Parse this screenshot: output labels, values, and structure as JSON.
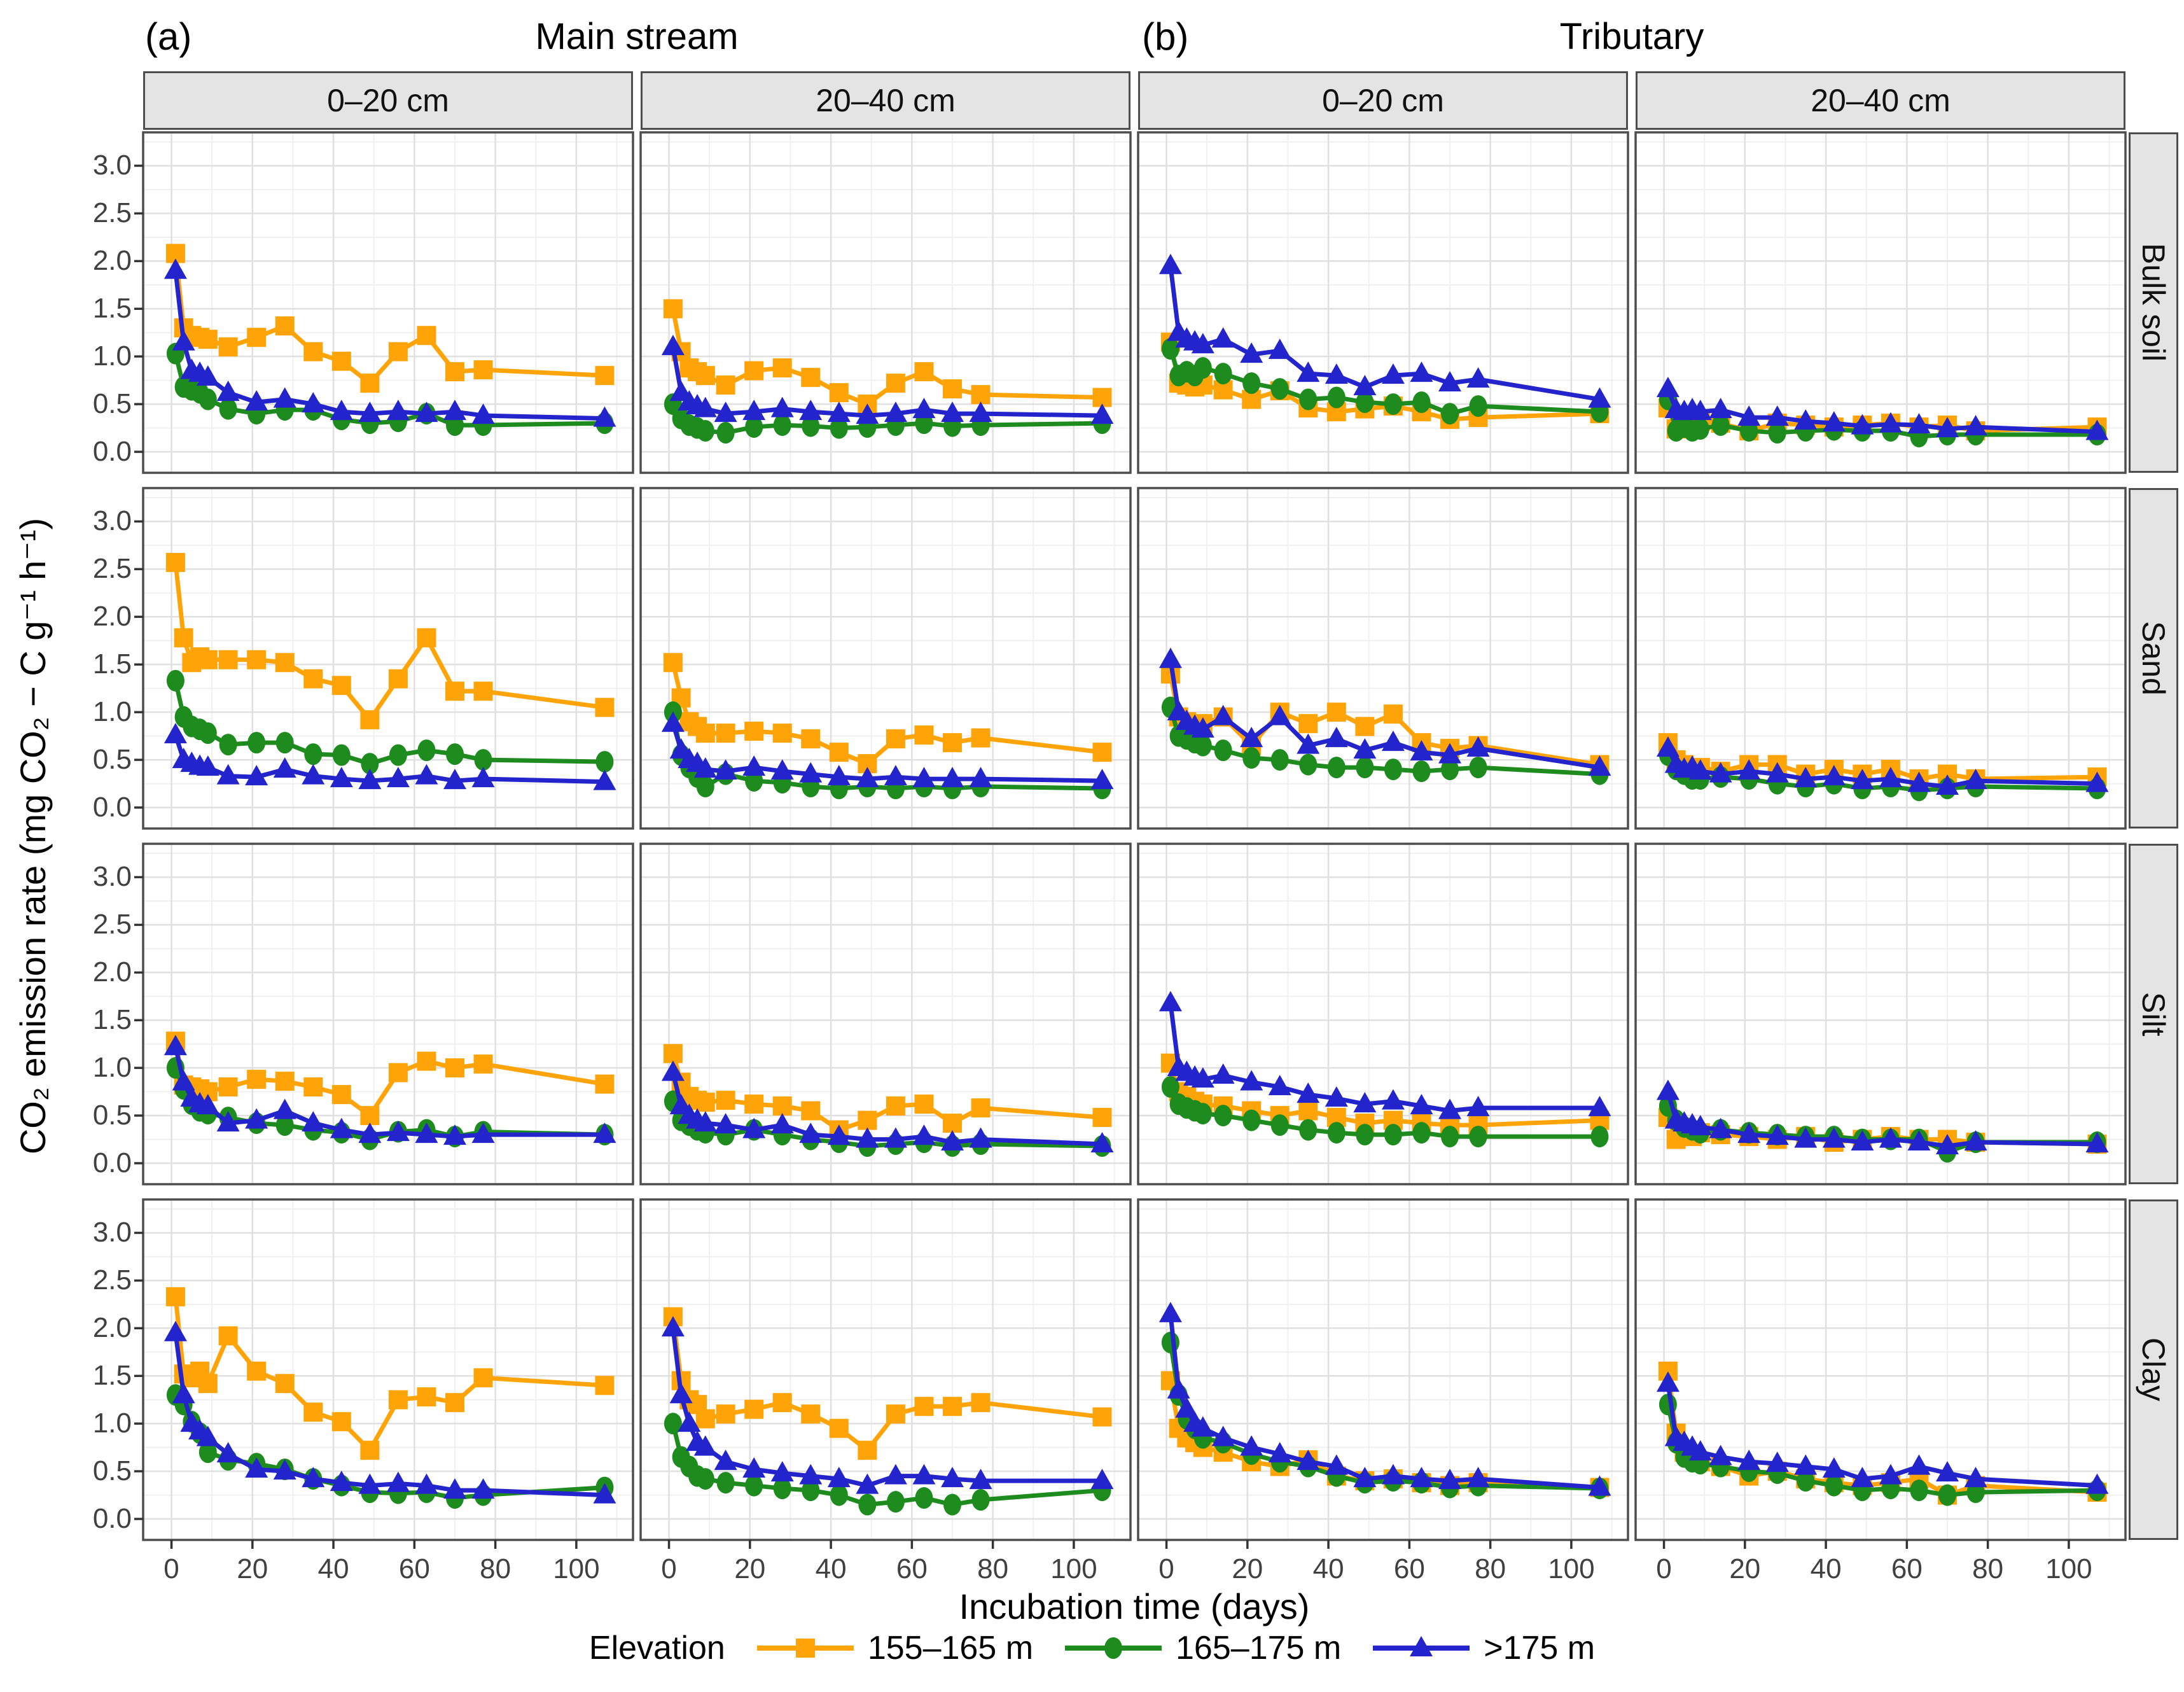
{
  "figure": {
    "titles": {
      "a_tag": "(a)",
      "a_text": "Main stream",
      "b_tag": "(b)",
      "b_text": "Tributary"
    }
  },
  "chart_data": {
    "type": "line",
    "xlabel": "Incubation time (days)",
    "ylabel": "CO₂ emission rate (mg CO₂ − C g⁻¹ h⁻¹)",
    "legend_title": "Elevation",
    "col_headers": [
      "0–20 cm",
      "20–40 cm",
      "0–20 cm",
      "20–40 cm"
    ],
    "row_headers": [
      "Bulk soil",
      "Sand",
      "Silt",
      "Clay"
    ],
    "group_headers": [
      "Main stream",
      "Tributary"
    ],
    "x_ticks": [
      0,
      20,
      40,
      60,
      80,
      100
    ],
    "y_ticks": [
      "0.0",
      "0.5",
      "1.0",
      "1.5",
      "2.0",
      "2.5",
      "3.0"
    ],
    "xlim": [
      -7,
      114
    ],
    "ylim": [
      -0.22,
      3.35
    ],
    "grid": true,
    "legend_position": "bottom",
    "series": [
      {
        "name": "155–165 m",
        "color": "#FFA408",
        "marker": "square"
      },
      {
        "name": "165–175 m",
        "color": "#1E8B1E",
        "marker": "circle"
      },
      {
        "name": ">175 m",
        "color": "#2424CC",
        "marker": "triangle"
      }
    ],
    "x": [
      1,
      3,
      5,
      7,
      9,
      14,
      21,
      28,
      35,
      42,
      49,
      56,
      63,
      70,
      77,
      107
    ],
    "panels": [
      {
        "row": "Bulk soil",
        "col": "Main stream 0–20 cm",
        "values": [
          [
            2.08,
            1.3,
            1.22,
            1.2,
            1.18,
            1.1,
            1.2,
            1.32,
            1.05,
            0.95,
            0.72,
            1.05,
            1.22,
            0.84,
            0.86,
            0.8
          ],
          [
            1.03,
            0.68,
            0.65,
            0.62,
            0.55,
            0.45,
            0.4,
            0.44,
            0.44,
            0.34,
            0.3,
            0.32,
            0.4,
            0.28,
            0.28,
            0.3
          ],
          [
            1.9,
            1.15,
            0.85,
            0.82,
            0.78,
            0.62,
            0.52,
            0.55,
            0.5,
            0.42,
            0.4,
            0.42,
            0.4,
            0.42,
            0.38,
            0.35
          ]
        ]
      },
      {
        "row": "Bulk soil",
        "col": "Main stream 20–40 cm",
        "values": [
          [
            1.5,
            1.05,
            0.88,
            0.84,
            0.8,
            0.7,
            0.85,
            0.88,
            0.78,
            0.62,
            0.5,
            0.72,
            0.84,
            0.66,
            0.6,
            0.57
          ],
          [
            0.5,
            0.35,
            0.28,
            0.25,
            0.22,
            0.2,
            0.26,
            0.28,
            0.27,
            0.25,
            0.26,
            0.28,
            0.3,
            0.27,
            0.28,
            0.3
          ],
          [
            1.1,
            0.62,
            0.52,
            0.48,
            0.45,
            0.4,
            0.42,
            0.45,
            0.42,
            0.4,
            0.38,
            0.4,
            0.44,
            0.4,
            0.4,
            0.38
          ]
        ]
      },
      {
        "row": "Bulk soil",
        "col": "Tributary 0–20 cm",
        "values": [
          [
            1.15,
            0.72,
            0.7,
            0.68,
            0.7,
            0.65,
            0.55,
            0.64,
            0.46,
            0.42,
            0.45,
            0.48,
            0.42,
            0.34,
            0.36,
            0.4
          ],
          [
            1.08,
            0.8,
            0.84,
            0.8,
            0.88,
            0.82,
            0.72,
            0.66,
            0.55,
            0.57,
            0.52,
            0.5,
            0.52,
            0.4,
            0.48,
            0.42
          ],
          [
            1.95,
            1.25,
            1.18,
            1.15,
            1.12,
            1.18,
            1.02,
            1.06,
            0.82,
            0.8,
            0.68,
            0.8,
            0.82,
            0.72,
            0.76,
            0.55
          ]
        ]
      },
      {
        "row": "Bulk soil",
        "col": "Tributary 20–40 cm",
        "values": [
          [
            0.46,
            0.24,
            0.32,
            0.3,
            0.32,
            0.3,
            0.22,
            0.3,
            0.28,
            0.26,
            0.28,
            0.3,
            0.26,
            0.28,
            0.22,
            0.26
          ],
          [
            0.55,
            0.22,
            0.26,
            0.22,
            0.24,
            0.28,
            0.22,
            0.2,
            0.22,
            0.23,
            0.22,
            0.22,
            0.16,
            0.18,
            0.18,
            0.18
          ],
          [
            0.66,
            0.44,
            0.42,
            0.44,
            0.42,
            0.44,
            0.36,
            0.36,
            0.32,
            0.3,
            0.27,
            0.29,
            0.28,
            0.24,
            0.26,
            0.21
          ]
        ]
      },
      {
        "row": "Sand",
        "col": "Main stream 0–20 cm",
        "values": [
          [
            2.57,
            1.78,
            1.52,
            1.58,
            1.55,
            1.55,
            1.55,
            1.52,
            1.35,
            1.28,
            0.92,
            1.35,
            1.78,
            1.22,
            1.22,
            1.05
          ],
          [
            1.33,
            0.95,
            0.85,
            0.82,
            0.78,
            0.66,
            0.68,
            0.68,
            0.56,
            0.55,
            0.46,
            0.55,
            0.6,
            0.56,
            0.5,
            0.48
          ],
          [
            0.76,
            0.5,
            0.46,
            0.43,
            0.42,
            0.33,
            0.32,
            0.4,
            0.33,
            0.3,
            0.28,
            0.3,
            0.33,
            0.28,
            0.3,
            0.27
          ]
        ]
      },
      {
        "row": "Sand",
        "col": "Main stream 20–40 cm",
        "values": [
          [
            1.52,
            1.15,
            0.9,
            0.85,
            0.78,
            0.78,
            0.8,
            0.78,
            0.72,
            0.58,
            0.46,
            0.72,
            0.76,
            0.68,
            0.73,
            0.58
          ],
          [
            1.0,
            0.55,
            0.42,
            0.32,
            0.22,
            0.35,
            0.28,
            0.26,
            0.22,
            0.2,
            0.22,
            0.2,
            0.22,
            0.2,
            0.22,
            0.2
          ],
          [
            0.88,
            0.6,
            0.5,
            0.46,
            0.4,
            0.38,
            0.42,
            0.38,
            0.35,
            0.32,
            0.3,
            0.32,
            0.3,
            0.3,
            0.3,
            0.28
          ]
        ]
      },
      {
        "row": "Sand",
        "col": "Tributary 0–20 cm",
        "values": [
          [
            1.4,
            0.95,
            0.9,
            0.86,
            0.88,
            0.95,
            0.65,
            1.0,
            0.88,
            1.0,
            0.85,
            0.98,
            0.68,
            0.62,
            0.65,
            0.45
          ],
          [
            1.05,
            0.75,
            0.72,
            0.68,
            0.65,
            0.6,
            0.52,
            0.5,
            0.45,
            0.42,
            0.42,
            0.4,
            0.38,
            0.4,
            0.42,
            0.35
          ],
          [
            1.55,
            1.0,
            0.9,
            0.85,
            0.82,
            0.95,
            0.72,
            0.95,
            0.65,
            0.72,
            0.6,
            0.68,
            0.58,
            0.55,
            0.62,
            0.42
          ]
        ]
      },
      {
        "row": "Sand",
        "col": "Tributary 20–40 cm",
        "values": [
          [
            0.68,
            0.5,
            0.45,
            0.4,
            0.42,
            0.38,
            0.45,
            0.45,
            0.35,
            0.4,
            0.35,
            0.4,
            0.3,
            0.35,
            0.3,
            0.32
          ],
          [
            0.55,
            0.4,
            0.35,
            0.3,
            0.3,
            0.32,
            0.3,
            0.25,
            0.22,
            0.25,
            0.2,
            0.22,
            0.18,
            0.2,
            0.22,
            0.2
          ],
          [
            0.62,
            0.45,
            0.4,
            0.42,
            0.38,
            0.35,
            0.38,
            0.35,
            0.3,
            0.32,
            0.28,
            0.3,
            0.25,
            0.22,
            0.28,
            0.25
          ]
        ]
      },
      {
        "row": "Silt",
        "col": "Main stream 0–20 cm",
        "values": [
          [
            1.28,
            0.82,
            0.8,
            0.78,
            0.75,
            0.8,
            0.88,
            0.86,
            0.8,
            0.72,
            0.5,
            0.95,
            1.07,
            1.0,
            1.04,
            0.83
          ],
          [
            1.0,
            0.78,
            0.62,
            0.55,
            0.52,
            0.48,
            0.42,
            0.4,
            0.35,
            0.32,
            0.25,
            0.33,
            0.35,
            0.28,
            0.33,
            0.3
          ],
          [
            1.22,
            0.85,
            0.68,
            0.62,
            0.6,
            0.42,
            0.45,
            0.55,
            0.42,
            0.35,
            0.3,
            0.32,
            0.3,
            0.28,
            0.3,
            0.3
          ]
        ]
      },
      {
        "row": "Silt",
        "col": "Main stream 20–40 cm",
        "values": [
          [
            1.15,
            0.85,
            0.7,
            0.66,
            0.64,
            0.66,
            0.62,
            0.6,
            0.55,
            0.35,
            0.45,
            0.6,
            0.62,
            0.42,
            0.58,
            0.48
          ],
          [
            0.65,
            0.45,
            0.4,
            0.35,
            0.32,
            0.3,
            0.35,
            0.3,
            0.25,
            0.22,
            0.18,
            0.2,
            0.22,
            0.18,
            0.2,
            0.18
          ],
          [
            0.95,
            0.6,
            0.5,
            0.45,
            0.42,
            0.4,
            0.35,
            0.4,
            0.3,
            0.28,
            0.25,
            0.25,
            0.28,
            0.22,
            0.25,
            0.2
          ]
        ]
      },
      {
        "row": "Silt",
        "col": "Tributary 0–20 cm",
        "values": [
          [
            1.05,
            0.75,
            0.7,
            0.65,
            0.62,
            0.6,
            0.55,
            0.5,
            0.55,
            0.48,
            0.42,
            0.45,
            0.42,
            0.4,
            0.4,
            0.45
          ],
          [
            0.8,
            0.62,
            0.58,
            0.55,
            0.52,
            0.5,
            0.45,
            0.4,
            0.35,
            0.32,
            0.3,
            0.3,
            0.32,
            0.28,
            0.28,
            0.28
          ],
          [
            1.68,
            1.0,
            0.95,
            0.9,
            0.88,
            0.92,
            0.85,
            0.8,
            0.72,
            0.68,
            0.62,
            0.65,
            0.6,
            0.55,
            0.58,
            0.58
          ]
        ]
      },
      {
        "row": "Silt",
        "col": "Tributary 20–40 cm",
        "values": [
          [
            0.48,
            0.25,
            0.3,
            0.28,
            0.32,
            0.3,
            0.28,
            0.25,
            0.28,
            0.22,
            0.25,
            0.28,
            0.25,
            0.25,
            0.22,
            0.2
          ],
          [
            0.6,
            0.45,
            0.38,
            0.35,
            0.32,
            0.35,
            0.32,
            0.3,
            0.28,
            0.28,
            0.25,
            0.25,
            0.25,
            0.12,
            0.22,
            0.22
          ],
          [
            0.75,
            0.45,
            0.42,
            0.4,
            0.38,
            0.35,
            0.3,
            0.28,
            0.25,
            0.25,
            0.22,
            0.25,
            0.22,
            0.18,
            0.22,
            0.2
          ]
        ]
      },
      {
        "row": "Clay",
        "col": "Main stream 0–20 cm",
        "values": [
          [
            2.33,
            1.52,
            1.48,
            1.55,
            1.42,
            1.92,
            1.55,
            1.42,
            1.12,
            1.02,
            0.72,
            1.25,
            1.28,
            1.22,
            1.48,
            1.4
          ],
          [
            1.3,
            1.2,
            1.02,
            0.9,
            0.7,
            0.62,
            0.58,
            0.52,
            0.42,
            0.35,
            0.28,
            0.27,
            0.28,
            0.22,
            0.25,
            0.33
          ],
          [
            1.95,
            1.3,
            1.0,
            0.92,
            0.85,
            0.68,
            0.52,
            0.5,
            0.42,
            0.38,
            0.35,
            0.37,
            0.35,
            0.3,
            0.3,
            0.25
          ]
        ]
      },
      {
        "row": "Clay",
        "col": "Main stream 20–40 cm",
        "values": [
          [
            2.12,
            1.45,
            1.25,
            1.2,
            1.05,
            1.1,
            1.15,
            1.22,
            1.1,
            0.95,
            0.72,
            1.1,
            1.18,
            1.18,
            1.22,
            1.07
          ],
          [
            1.0,
            0.65,
            0.55,
            0.45,
            0.42,
            0.38,
            0.35,
            0.32,
            0.3,
            0.25,
            0.15,
            0.18,
            0.22,
            0.15,
            0.2,
            0.3
          ],
          [
            2.0,
            1.3,
            1.0,
            0.8,
            0.75,
            0.6,
            0.52,
            0.48,
            0.45,
            0.42,
            0.35,
            0.45,
            0.45,
            0.42,
            0.4,
            0.4
          ]
        ]
      },
      {
        "row": "Clay",
        "col": "Tributary 0–20 cm",
        "values": [
          [
            1.45,
            0.95,
            0.85,
            0.8,
            0.75,
            0.7,
            0.6,
            0.55,
            0.62,
            0.45,
            0.4,
            0.42,
            0.38,
            0.35,
            0.38,
            0.33
          ],
          [
            1.85,
            1.3,
            1.05,
            0.95,
            0.85,
            0.8,
            0.68,
            0.6,
            0.55,
            0.45,
            0.38,
            0.4,
            0.38,
            0.33,
            0.35,
            0.32
          ],
          [
            2.15,
            1.35,
            1.15,
            1.0,
            0.95,
            0.85,
            0.75,
            0.68,
            0.6,
            0.55,
            0.42,
            0.45,
            0.42,
            0.4,
            0.42,
            0.33
          ]
        ]
      },
      {
        "row": "Clay",
        "col": "Tributary 20–40 cm",
        "values": [
          [
            1.55,
            0.9,
            0.7,
            0.65,
            0.6,
            0.55,
            0.45,
            0.5,
            0.42,
            0.38,
            0.35,
            0.38,
            0.42,
            0.25,
            0.35,
            0.28
          ],
          [
            1.2,
            0.8,
            0.65,
            0.6,
            0.58,
            0.55,
            0.5,
            0.48,
            0.4,
            0.35,
            0.3,
            0.32,
            0.3,
            0.25,
            0.28,
            0.3
          ],
          [
            1.42,
            0.85,
            0.8,
            0.75,
            0.7,
            0.65,
            0.6,
            0.58,
            0.55,
            0.52,
            0.42,
            0.45,
            0.55,
            0.48,
            0.42,
            0.35
          ]
        ]
      }
    ]
  }
}
